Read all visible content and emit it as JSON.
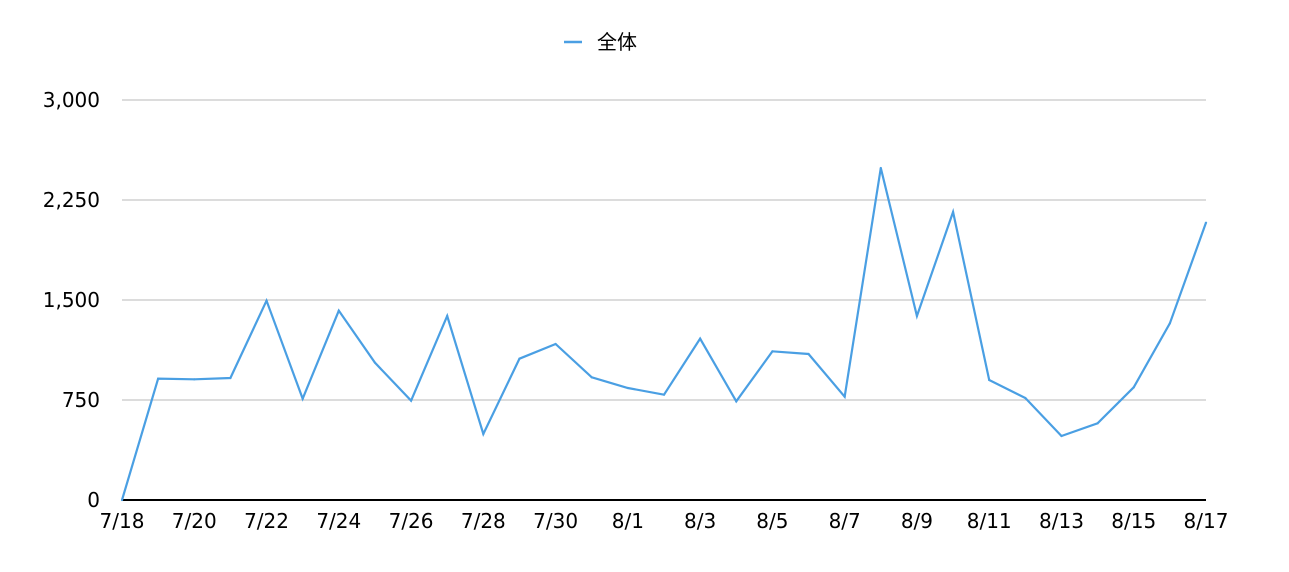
{
  "chart_data": {
    "type": "line",
    "title": "",
    "xlabel": "",
    "ylabel": "",
    "legend_position": "top-center",
    "grid": true,
    "ylim": [
      0,
      3000
    ],
    "y_ticks": [
      "0",
      "750",
      "1,500",
      "2,250",
      "3,000"
    ],
    "x": [
      "7/18",
      "7/19",
      "7/20",
      "7/21",
      "7/22",
      "7/23",
      "7/24",
      "7/25",
      "7/26",
      "7/27",
      "7/28",
      "7/29",
      "7/30",
      "7/31",
      "8/1",
      "8/2",
      "8/3",
      "8/4",
      "8/5",
      "8/6",
      "8/7",
      "8/8",
      "8/9",
      "8/10",
      "8/11",
      "8/12",
      "8/13",
      "8/14",
      "8/15",
      "8/16",
      "8/17"
    ],
    "x_tick_labels": [
      "7/18",
      "7/20",
      "7/22",
      "7/24",
      "7/26",
      "7/28",
      "7/30",
      "8/1",
      "8/3",
      "8/5",
      "8/7",
      "8/9",
      "8/11",
      "8/13",
      "8/15",
      "8/17"
    ],
    "series": [
      {
        "name": "全体",
        "color": "#4a9fe3",
        "values": [
          0,
          910,
          905,
          915,
          1495,
          760,
          1420,
          1030,
          745,
          1380,
          495,
          1060,
          1170,
          920,
          840,
          790,
          1210,
          740,
          1115,
          1095,
          775,
          2490,
          1380,
          2160,
          900,
          765,
          480,
          575,
          845,
          1325,
          2080
        ]
      }
    ]
  }
}
